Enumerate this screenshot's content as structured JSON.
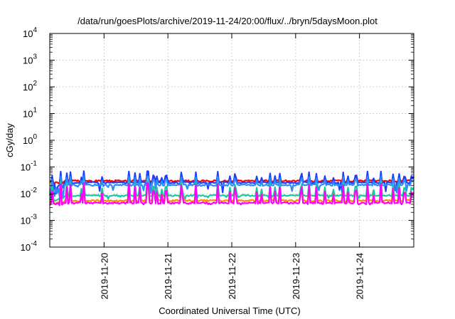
{
  "chart_data": {
    "type": "line",
    "title": "/data/run/goesPlots/archive/2019-11-24/20:00/flux/../bryn/5daysMoon.plot",
    "xlabel": "Coordinated Universal Time (UTC)",
    "ylabel": "cGy/day",
    "x_tick_labels": [
      "2019-11-20",
      "2019-11-21",
      "2019-11-22",
      "2019-11-23",
      "2019-11-24"
    ],
    "x_tick_positions_days": [
      1,
      2,
      3,
      4,
      5
    ],
    "xlim_days": [
      0.15,
      5.85
    ],
    "x_origin_date": "2019-11-19",
    "y_scale": "log",
    "ylim": [
      0.0001,
      10000
    ],
    "y_ticks": [
      {
        "base": "10",
        "exp": "-4",
        "value": 0.0001
      },
      {
        "base": "10",
        "exp": "-3",
        "value": 0.001
      },
      {
        "base": "10",
        "exp": "-2",
        "value": 0.01
      },
      {
        "base": "10",
        "exp": "-1",
        "value": 0.1
      },
      {
        "base": "10",
        "exp": "0",
        "value": 1
      },
      {
        "base": "10",
        "exp": "1",
        "value": 10
      },
      {
        "base": "10",
        "exp": "2",
        "value": 100
      },
      {
        "base": "10",
        "exp": "3",
        "value": 1000
      },
      {
        "base": "10",
        "exp": "4",
        "value": 10000
      }
    ],
    "grid": true,
    "series": [
      {
        "color": "#ff0000",
        "baseline": 0.03,
        "spike_max": 0.05,
        "dip_min": 0.022
      },
      {
        "color": "#1f3fff",
        "baseline": 0.026,
        "spike_max": 0.07,
        "dip_min": 0.006
      },
      {
        "color": "#2a8cff",
        "baseline": 0.021,
        "spike_max": 0.045,
        "dip_min": 0.006
      },
      {
        "color": "#18c8a0",
        "baseline": 0.0085,
        "spike_max": 0.03,
        "dip_min": 0.005
      },
      {
        "color": "#ff8c00",
        "baseline": 0.0055,
        "spike_max": 0.02,
        "dip_min": 0.004
      },
      {
        "color": "#ff00ff",
        "baseline": 0.0045,
        "spike_max": 0.025,
        "dip_min": 0.0035
      }
    ]
  }
}
